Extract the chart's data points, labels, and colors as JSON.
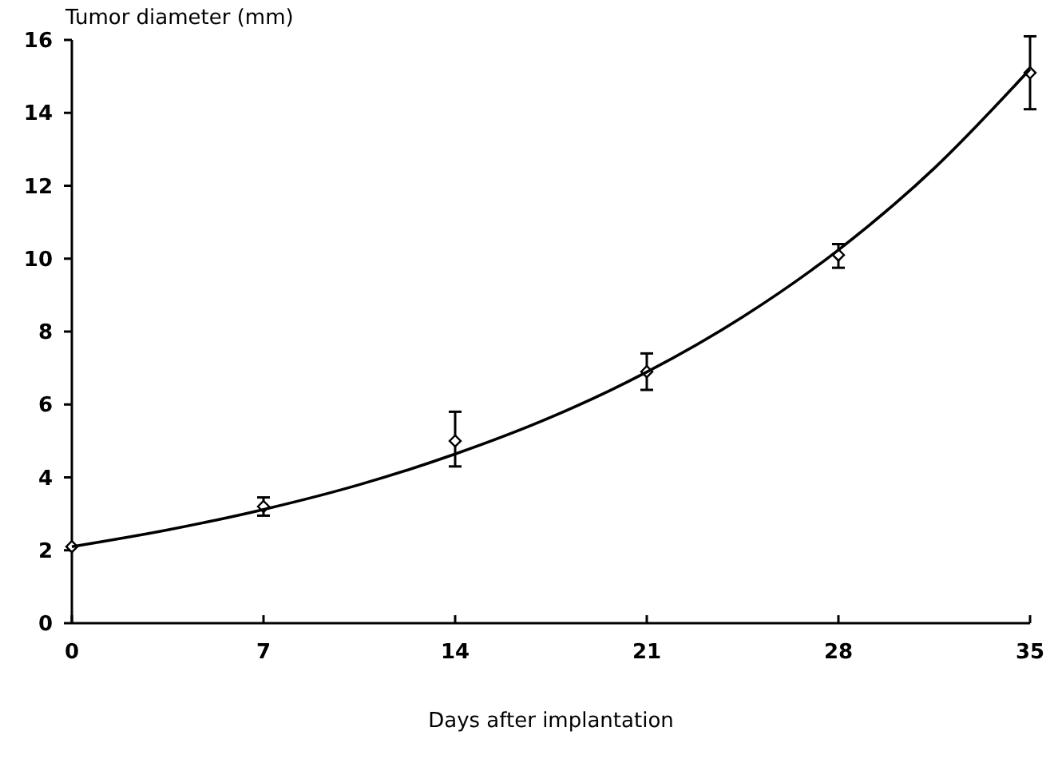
{
  "chart_data": {
    "type": "scatter",
    "ylabel": "Tumor diameter (mm)",
    "xlabel": "Days after implantation",
    "xlim": [
      0,
      35
    ],
    "xticks": [
      0,
      7,
      14,
      21,
      28,
      35
    ],
    "ylim": [
      0,
      16
    ],
    "yticks": [
      0,
      2,
      4,
      6,
      8,
      10,
      12,
      14,
      16
    ],
    "grid": false,
    "series": [
      {
        "color": "#000000",
        "marker": "diamond",
        "x": [
          0,
          7,
          14,
          21,
          28,
          35
        ],
        "values": [
          2.1,
          3.2,
          5.0,
          6.9,
          10.1,
          15.1
        ],
        "errors": [
          null,
          [
            2.95,
            3.45
          ],
          [
            4.3,
            5.8
          ],
          [
            6.4,
            7.4
          ],
          [
            9.75,
            10.4
          ],
          [
            14.1,
            16.1
          ]
        ]
      },
      {
        "type": "line",
        "color": "#000000",
        "marker": "none",
        "line_style": "solid",
        "x": [
          0,
          3.5,
          7,
          10.5,
          14,
          17.5,
          21,
          24.5,
          28,
          31.5,
          35
        ],
        "values": [
          2.1,
          2.56,
          3.12,
          3.8,
          4.64,
          5.65,
          6.89,
          8.4,
          10.24,
          12.48,
          15.2
        ]
      }
    ]
  }
}
